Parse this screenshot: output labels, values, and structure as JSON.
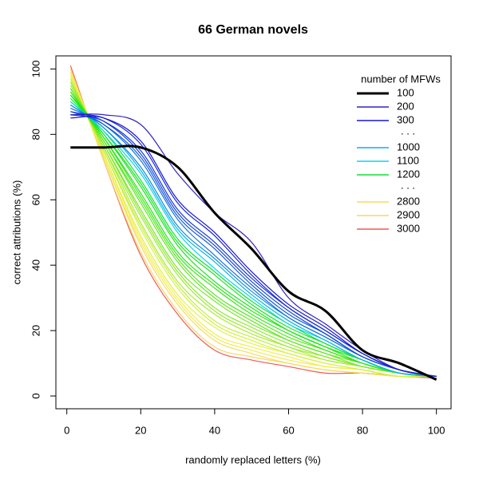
{
  "chart_data": {
    "type": "line",
    "title": "66 German novels",
    "x_label": "randomly replaced letters (%)",
    "y_label": "correct attributions (%)",
    "x": [
      1,
      10,
      20,
      30,
      40,
      50,
      60,
      70,
      80,
      90,
      100
    ],
    "xlim": [
      -2.96,
      103.96
    ],
    "xticks": [
      0,
      20,
      40,
      60,
      80,
      100
    ],
    "ylim": [
      -3.9,
      104
    ],
    "yticks": [
      0,
      20,
      40,
      60,
      80,
      100
    ],
    "legend_title": "number of MFWs",
    "legend_position": "topright",
    "legend_ellipsis": ". . .",
    "series": [
      {
        "name": "100",
        "color": "#000000",
        "values": [
          76,
          76,
          76,
          70,
          56,
          45,
          32,
          26,
          14,
          10,
          5
        ]
      },
      {
        "name": "200",
        "color": "hsl(245,70%,45%)",
        "values": [
          86,
          86,
          83,
          68,
          56,
          47,
          30,
          22,
          14,
          8,
          6
        ]
      },
      {
        "name": "300",
        "color": "hsl(240,80%,45%)",
        "values": [
          85,
          85,
          78,
          60,
          50,
          38,
          28,
          21,
          13,
          8,
          6
        ]
      },
      {
        "color": "hsl(235,80%,47%)",
        "values": [
          86,
          85,
          77,
          59,
          49,
          37,
          27,
          20,
          13,
          8,
          6
        ]
      },
      {
        "color": "hsl(230,80%,48%)",
        "values": [
          86,
          84,
          75,
          57,
          47,
          36,
          27,
          20,
          13,
          8,
          6
        ]
      },
      {
        "color": "hsl(225,80%,48%)",
        "values": [
          87,
          84,
          74,
          56,
          46,
          35,
          26,
          19,
          12,
          8,
          6
        ]
      },
      {
        "color": "hsl(220,80%,48%)",
        "values": [
          87,
          83,
          73,
          55,
          45,
          34,
          25,
          19,
          12,
          8,
          6
        ]
      },
      {
        "color": "hsl(212,80%,48%)",
        "values": [
          88,
          83,
          72,
          54,
          43,
          33,
          24,
          18,
          12,
          8,
          6
        ]
      },
      {
        "color": "hsl(205,85%,48%)",
        "values": [
          89,
          82,
          70,
          52,
          42,
          32,
          24,
          18,
          12,
          8,
          6
        ]
      },
      {
        "name": "1000",
        "color": "hsl(195,90%,48%)",
        "values": [
          89,
          82,
          69,
          51,
          41,
          31,
          23,
          17,
          11,
          7,
          6
        ]
      },
      {
        "name": "1100",
        "color": "hsl(185,90%,48%)",
        "values": [
          90,
          81,
          68,
          50,
          39,
          30,
          22,
          17,
          11,
          7,
          6
        ]
      },
      {
        "name": "1200",
        "color": "hsl(130,85%,48%)",
        "values": [
          90,
          81,
          66,
          48,
          38,
          29,
          22,
          16,
          11,
          7,
          6
        ]
      },
      {
        "color": "hsl(125,80%,50%)",
        "values": [
          91,
          80,
          65,
          47,
          37,
          28,
          21,
          16,
          11,
          7,
          6
        ]
      },
      {
        "color": "hsl(120,80%,50%)",
        "values": [
          92,
          80,
          64,
          46,
          35,
          27,
          20,
          15,
          11,
          7,
          6
        ]
      },
      {
        "color": "hsl(115,80%,50%)",
        "values": [
          92,
          79,
          62,
          44,
          34,
          26,
          20,
          15,
          10,
          7,
          6
        ]
      },
      {
        "color": "hsl(110,80%,50%)",
        "values": [
          93,
          79,
          61,
          43,
          33,
          25,
          19,
          14,
          10,
          7,
          6
        ]
      },
      {
        "color": "hsl(105,80%,52%)",
        "values": [
          93,
          78,
          60,
          42,
          31,
          24,
          18,
          14,
          10,
          7,
          6
        ]
      },
      {
        "color": "hsl(100,80%,52%)",
        "values": [
          94,
          78,
          59,
          41,
          30,
          23,
          17,
          13,
          10,
          7,
          6
        ]
      },
      {
        "color": "hsl(95,80%,54%)",
        "values": [
          94,
          77,
          57,
          39,
          29,
          22,
          17,
          13,
          9,
          7,
          6
        ]
      },
      {
        "color": "hsl(90,80%,55%)",
        "values": [
          95,
          77,
          56,
          38,
          27,
          21,
          16,
          12,
          9,
          7,
          6
        ]
      },
      {
        "color": "hsl(85,80%,56%)",
        "values": [
          96,
          76,
          55,
          37,
          26,
          20,
          15,
          12,
          9,
          7,
          6
        ]
      },
      {
        "color": "hsl(80,80%,57%)",
        "values": [
          96,
          76,
          53,
          35,
          25,
          19,
          15,
          11,
          9,
          7,
          6
        ]
      },
      {
        "color": "hsl(75,85%,58%)",
        "values": [
          97,
          75,
          52,
          34,
          23,
          18,
          14,
          11,
          9,
          7,
          6
        ]
      },
      {
        "color": "hsl(70,85%,60%)",
        "values": [
          97,
          75,
          51,
          33,
          22,
          17,
          13,
          10,
          8,
          6,
          6
        ]
      },
      {
        "color": "hsl(65,85%,62%)",
        "values": [
          98,
          74,
          49,
          31,
          21,
          16,
          13,
          10,
          8,
          6,
          6
        ]
      },
      {
        "color": "hsl(60,85%,62%)",
        "values": [
          99,
          74,
          48,
          30,
          19,
          15,
          12,
          9,
          8,
          6,
          6
        ]
      },
      {
        "color": "hsl(57,85%,64%)",
        "values": [
          99,
          73,
          47,
          29,
          18,
          14,
          11,
          9,
          8,
          6,
          6
        ]
      },
      {
        "name": "2800",
        "color": "hsl(52,85%,66%)",
        "values": [
          100,
          73,
          46,
          28,
          17,
          13,
          10,
          8,
          7,
          6,
          6
        ]
      },
      {
        "name": "2900",
        "color": "hsl(48,90%,68%)",
        "values": [
          100,
          72,
          44,
          26,
          15,
          12,
          10,
          8,
          7,
          6,
          6
        ]
      },
      {
        "name": "3000",
        "color": "hsl(2,85%,64%)",
        "values": [
          101,
          72,
          43,
          25,
          14,
          11,
          9,
          7,
          7,
          6,
          5.5
        ]
      }
    ]
  }
}
